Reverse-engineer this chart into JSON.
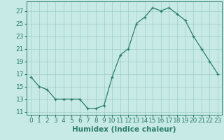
{
  "x": [
    0,
    1,
    2,
    3,
    4,
    5,
    6,
    7,
    8,
    9,
    10,
    11,
    12,
    13,
    14,
    15,
    16,
    17,
    18,
    19,
    20,
    21,
    22,
    23
  ],
  "y": [
    16.5,
    15.0,
    14.5,
    13.0,
    13.0,
    13.0,
    13.0,
    11.5,
    11.5,
    12.0,
    16.5,
    20.0,
    21.0,
    25.0,
    26.0,
    27.5,
    27.0,
    27.5,
    26.5,
    25.5,
    23.0,
    21.0,
    19.0,
    17.0
  ],
  "xlabel": "Humidex (Indice chaleur)",
  "xlim": [
    -0.5,
    23.5
  ],
  "ylim": [
    10.5,
    28.5
  ],
  "yticks": [
    11,
    13,
    15,
    17,
    19,
    21,
    23,
    25,
    27
  ],
  "xticks": [
    0,
    1,
    2,
    3,
    4,
    5,
    6,
    7,
    8,
    9,
    10,
    11,
    12,
    13,
    14,
    15,
    16,
    17,
    18,
    19,
    20,
    21,
    22,
    23
  ],
  "line_color": "#2d7d6b",
  "marker": "+",
  "bg_color": "#c8eae6",
  "grid_color": "#9eccc8",
  "tick_label_fontsize": 6.5,
  "xlabel_fontsize": 7.5
}
